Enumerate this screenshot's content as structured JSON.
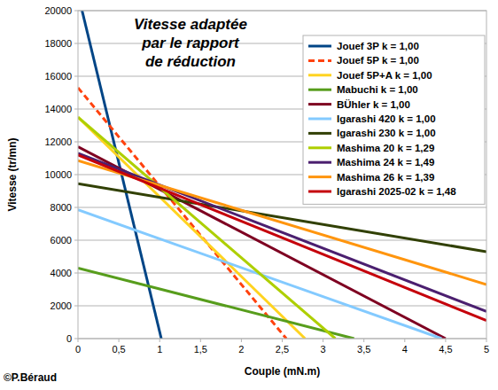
{
  "chart_data": {
    "type": "line",
    "title": "Vitesse adaptée\npar le rapport\nde réduction",
    "x_label": "Couple (mN.m)",
    "y_label": "Vitesse (tr/mn)",
    "annotation": "©P.Béraud",
    "xlim": [
      0,
      5
    ],
    "ylim": [
      0,
      20000
    ],
    "xticks": [
      0,
      {
        "value": 0.5,
        "label": "0,5"
      },
      1,
      {
        "value": 1.5,
        "label": "1,5"
      },
      2,
      {
        "value": 2.5,
        "label": "2,5"
      },
      3,
      {
        "value": 3.5,
        "label": "3,5"
      },
      4,
      {
        "value": 4.5,
        "label": "4,5"
      },
      5
    ],
    "yticks": [
      0,
      2000,
      4000,
      6000,
      8000,
      10000,
      12000,
      14000,
      16000,
      18000,
      20000
    ],
    "grid": true,
    "legend": "upper right",
    "series": [
      {
        "name": "Jouef 3P k = 1,00",
        "color": "#004586",
        "line_style": "solid",
        "x": [
          0.05,
          1.02
        ],
        "values": [
          20000,
          0
        ]
      },
      {
        "name": "Jouef 5P k = 1,00",
        "color": "#ff420e",
        "line_style": "dashed",
        "x": [
          0,
          2.55
        ],
        "values": [
          15300,
          0
        ]
      },
      {
        "name": "Jouef 5P+A k = 1,00",
        "color": "#ffd320",
        "line_style": "solid",
        "x": [
          0,
          2.78
        ],
        "values": [
          13500,
          0
        ]
      },
      {
        "name": "Mabuchi k = 1,00",
        "color": "#579d1c",
        "line_style": "solid",
        "x": [
          0,
          3.38
        ],
        "values": [
          4300,
          0
        ]
      },
      {
        "name": "BÜhler k = 1,00",
        "color": "#7e0021",
        "line_style": "solid",
        "x": [
          0,
          4.5
        ],
        "values": [
          11700,
          0
        ]
      },
      {
        "name": "Igarashi 420 k = 1,00",
        "color": "#83caff",
        "line_style": "solid",
        "x": [
          0,
          4.45
        ],
        "values": [
          7850,
          0
        ]
      },
      {
        "name": "Igarashi 230 k = 1,00",
        "color": "#314004",
        "line_style": "solid",
        "x": [
          0,
          5
        ],
        "values": [
          9450,
          5300
        ]
      },
      {
        "name": "Mashima 20 k = 1,29",
        "color": "#aecf00",
        "line_style": "solid",
        "x": [
          0,
          3.15
        ],
        "values": [
          13500,
          0
        ]
      },
      {
        "name": "Mashima 24 k = 1,49",
        "color": "#4b1f6f",
        "line_style": "solid",
        "x": [
          0,
          5
        ],
        "values": [
          11300,
          1650
        ]
      },
      {
        "name": "Mashima 26 k = 1,39",
        "color": "#ff950e",
        "line_style": "solid",
        "x": [
          0,
          5
        ],
        "values": [
          10850,
          3300
        ]
      },
      {
        "name": "Igarashi 2025-02 k = 1,48",
        "color": "#c5000b",
        "line_style": "solid",
        "x": [
          0,
          5
        ],
        "values": [
          11200,
          1100
        ]
      }
    ]
  }
}
